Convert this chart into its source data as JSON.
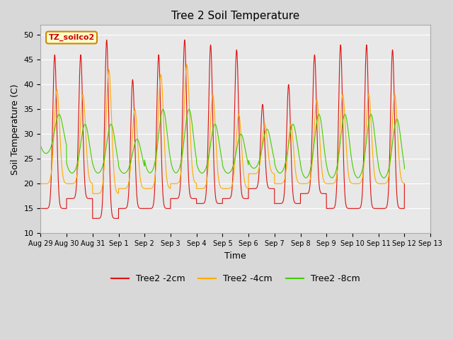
{
  "title": "Tree 2 Soil Temperature",
  "xlabel": "Time",
  "ylabel": "Soil Temperature (C)",
  "ylim": [
    10,
    52
  ],
  "xlim_start": 0,
  "xlim_end": 336,
  "fig_bg_color": "#d8d8d8",
  "plot_bg_color": "#e8e8e8",
  "legend_label": "TZ_soilco2",
  "series": {
    "2cm": {
      "color": "#dd1111",
      "label": "Tree2 -2cm"
    },
    "4cm": {
      "color": "#ffaa00",
      "label": "Tree2 -4cm"
    },
    "8cm": {
      "color": "#44cc00",
      "label": "Tree2 -8cm"
    }
  },
  "tick_labels": [
    "Aug 29",
    "Aug 30",
    "Aug 31",
    "Sep 1",
    "Sep 2",
    "Sep 3",
    "Sep 4",
    "Sep 5",
    "Sep 6",
    "Sep 7",
    "Sep 8",
    "Sep 9",
    "Sep 10",
    "Sep 11",
    "Sep 12",
    "Sep 13"
  ],
  "tick_positions": [
    0,
    24,
    48,
    72,
    96,
    120,
    144,
    168,
    192,
    216,
    240,
    264,
    288,
    312,
    336,
    360
  ],
  "grid_color": "#ffffff",
  "yticks": [
    10,
    15,
    20,
    25,
    30,
    35,
    40,
    45,
    50
  ]
}
